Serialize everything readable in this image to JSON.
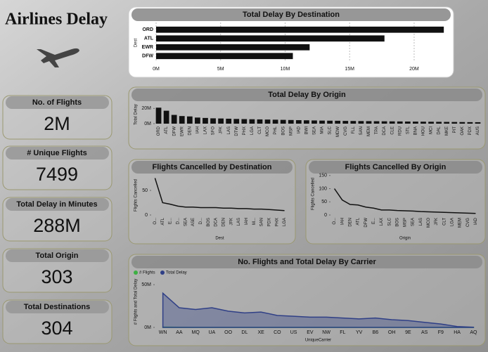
{
  "title": "Airlines Delay",
  "cards": [
    {
      "title": "No. of Flights",
      "value": "2M"
    },
    {
      "title": "# Unique Flights",
      "value": "7499"
    },
    {
      "title": "Total Delay in Minutes",
      "value": "288M"
    },
    {
      "title": "Total Origin",
      "value": "303"
    },
    {
      "title": "Total Destinations",
      "value": "304"
    }
  ],
  "chart_data": [
    {
      "type": "hbar",
      "title": "Total Delay By Destination",
      "ylabel": "Dest",
      "color": "#111111",
      "categories": [
        "ORD",
        "ATL",
        "EWR",
        "DFW"
      ],
      "values": [
        22300000,
        17700000,
        11900000,
        10600000
      ],
      "xlim": [
        0,
        23000000
      ],
      "xticks": [
        {
          "value": 0,
          "label": "0M"
        },
        {
          "value": 5000000,
          "label": "5M"
        },
        {
          "value": 10000000,
          "label": "10M"
        },
        {
          "value": 15000000,
          "label": "15M"
        },
        {
          "value": 20000000,
          "label": "20M"
        }
      ],
      "grid": true
    },
    {
      "type": "bar",
      "title": "Total Delay By Origin",
      "ylabel": "Total Delay",
      "color": "#111111",
      "categories": [
        "ORD",
        "ATL",
        "DFW",
        "EWR",
        "DEN",
        "IAH",
        "LAX",
        "SFO",
        "JFK",
        "LAS",
        "DTW",
        "PHX",
        "LGA",
        "CLT",
        "MCO",
        "PHL",
        "BOS",
        "MSP",
        "IAD",
        "BWI",
        "SEA",
        "MIA",
        "SLC",
        "MDW",
        "CVG",
        "FLL",
        "SAN",
        "MEM",
        "TPA",
        "DCA",
        "CLE",
        "RDU",
        "STL",
        "BNA",
        "HOU",
        "MCI",
        "DAL",
        "MKE",
        "PIT",
        "OAK",
        "PDX",
        "AUS"
      ],
      "values": [
        21000000,
        17000000,
        11500000,
        10000000,
        9500000,
        8000000,
        7500000,
        7000000,
        6800000,
        6500000,
        6200000,
        6000000,
        5800000,
        5600000,
        5400000,
        5200000,
        5000000,
        4800000,
        4600000,
        4400000,
        4200000,
        4000000,
        3900000,
        3800000,
        3600000,
        3500000,
        3400000,
        3300000,
        3200000,
        3100000,
        3000000,
        2900000,
        2800000,
        2700000,
        2600000,
        2500000,
        2400000,
        2300000,
        2200000,
        2100000,
        2000000,
        1900000
      ],
      "ylim": [
        0,
        24000000
      ],
      "yticks": [
        {
          "value": 0,
          "label": "0M"
        },
        {
          "value": 20000000,
          "label": "20M"
        }
      ]
    },
    {
      "type": "line",
      "title": "Flights Cancelled by Destination",
      "ylabel": "Flights Cancelled",
      "xlabel": "Dest",
      "color": "#111111",
      "categories": [
        "O...",
        "ATL",
        "E...",
        "D...",
        "SEA",
        "ASE",
        "D...",
        "BOS",
        "DCA",
        "DEN",
        "JFK",
        "LAS",
        "IAH",
        "M...",
        "SAN",
        "PDX",
        "PHX",
        "LGA"
      ],
      "values": [
        75,
        25,
        22,
        18,
        16,
        16,
        15,
        15,
        15,
        14,
        14,
        13,
        13,
        12,
        12,
        11,
        10,
        9
      ],
      "ylim": [
        0,
        80
      ],
      "yticks": [
        0,
        50
      ]
    },
    {
      "type": "line",
      "title": "Flights Cancelled By Origin",
      "ylabel": "Flights Cancelled",
      "xlabel": "Origin",
      "color": "#111111",
      "categories": [
        "O...",
        "IAH",
        "DEN",
        "ATL",
        "DFW",
        "E...",
        "LAX",
        "SLC",
        "BOS",
        "MSP",
        "SEA",
        "LAS",
        "MCO",
        "JFK",
        "CLT",
        "LGA",
        "MEM",
        "CVG",
        "IAD"
      ],
      "values": [
        100,
        57,
        40,
        38,
        30,
        26,
        19,
        19,
        17,
        16,
        15,
        13,
        12,
        11,
        10,
        9,
        8,
        7,
        6
      ],
      "ylim": [
        0,
        160
      ],
      "yticks": [
        0,
        50,
        100,
        150
      ]
    },
    {
      "type": "area",
      "title": "No. Flights and Total Delay By Carrier",
      "ylabel": "# Flights and Total Delay",
      "xlabel": "UniqueCarrier",
      "categories": [
        "WN",
        "AA",
        "MQ",
        "UA",
        "OO",
        "DL",
        "XE",
        "CO",
        "US",
        "EV",
        "NW",
        "FL",
        "YV",
        "B6",
        "OH",
        "9E",
        "AS",
        "F9",
        "HA",
        "AQ"
      ],
      "series": [
        {
          "name": "# Flights",
          "color": "#3cb043",
          "values": [
            380000,
            200000,
            140000,
            140000,
            130000,
            120000,
            100000,
            100000,
            100000,
            90000,
            80000,
            60000,
            50000,
            50000,
            50000,
            50000,
            40000,
            20000,
            20000,
            4000
          ]
        },
        {
          "name": "Total Delay",
          "color": "#2f3f86",
          "values": [
            40000000,
            23000000,
            21000000,
            23000000,
            19000000,
            17000000,
            18000000,
            14000000,
            13000000,
            12000000,
            12000000,
            11000000,
            10000000,
            11000000,
            9000000,
            8000000,
            6000000,
            4000000,
            1000000,
            200000
          ]
        }
      ],
      "ylim": [
        0,
        60000000
      ],
      "yticks": [
        {
          "value": 0,
          "label": "0M"
        },
        {
          "value": 50000000,
          "label": "50M"
        }
      ]
    }
  ]
}
